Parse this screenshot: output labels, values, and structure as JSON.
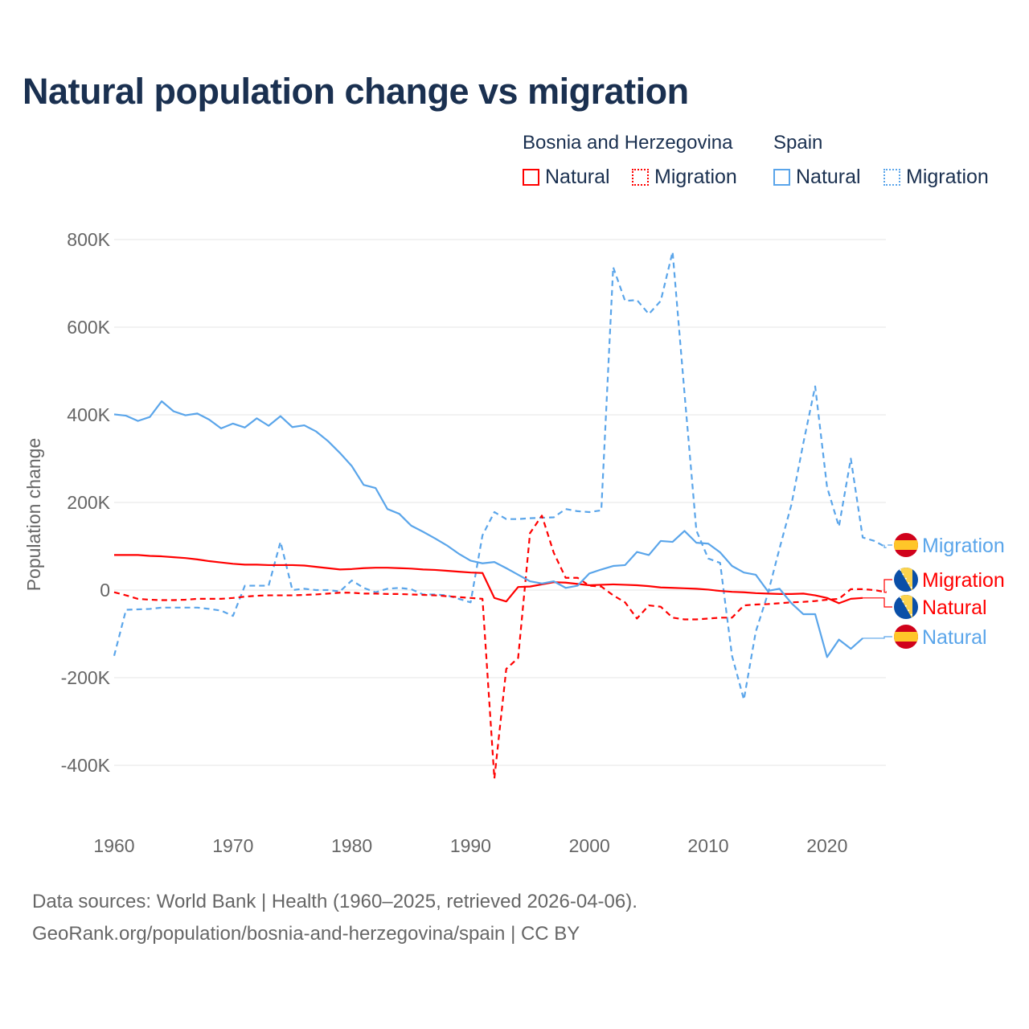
{
  "title": "Natural population change vs migration",
  "legend": {
    "groups": [
      {
        "name": "Bosnia and Herzegovina",
        "items": [
          "Natural",
          "Migration"
        ]
      },
      {
        "name": "Spain",
        "items": [
          "Natural",
          "Migration"
        ]
      }
    ]
  },
  "footer": {
    "line1": "Data sources: World Bank | Health (1960–2025, retrieved 2026-04-06).",
    "line2": "GeoRank.org/population/bosnia-and-herzegovina/spain | CC BY"
  },
  "colors": {
    "bosnia": "#ff0000",
    "spain": "#5aa5ea"
  },
  "chart_data": {
    "type": "line",
    "title": "Natural population change vs migration",
    "xlabel": "",
    "ylabel": "Population change",
    "xlim": [
      1960,
      2025
    ],
    "ylim": [
      -500000,
      850000
    ],
    "x_ticks": [
      1960,
      1970,
      1980,
      1990,
      2000,
      2010,
      2020
    ],
    "x_tick_labels": [
      "1960",
      "1970",
      "1980",
      "1990",
      "2000",
      "2010",
      "2020"
    ],
    "y_ticks": [
      -400000,
      -200000,
      0,
      200000,
      400000,
      600000,
      800000
    ],
    "y_tick_labels": [
      "-400K",
      "-200K",
      "0",
      "200K",
      "400K",
      "600K",
      "800K"
    ],
    "grid": true,
    "legend_position": "top-right",
    "series": [
      {
        "name": "Spain Migration",
        "country": "Spain",
        "kind": "Migration",
        "label": "Migration",
        "color": "#5aa5ea",
        "dashed": true,
        "start_year": 1960,
        "values": [
          -150,
          -45,
          -44,
          -43,
          -40,
          -40,
          -40,
          -40,
          -43,
          -47,
          -59,
          10,
          10,
          10,
          110,
          0,
          3,
          0,
          0,
          -3,
          22,
          5,
          -5,
          3,
          5,
          2,
          -10,
          -10,
          -12,
          -20,
          -28,
          125,
          178,
          162,
          162,
          164,
          165,
          166,
          185,
          180,
          178,
          182,
          737,
          660,
          662,
          630,
          660,
          772,
          450,
          136,
          72,
          62,
          -150,
          -250,
          -95,
          -10,
          95,
          195,
          335,
          465,
          235,
          145,
          300,
          120,
          112,
          97
        ]
      },
      {
        "name": "Bosnia and Herzegovina Migration",
        "country": "Bosnia and Herzegovina",
        "kind": "Migration",
        "label": "Migration",
        "color": "#ff0000",
        "dashed": true,
        "start_year": 1960,
        "values": [
          -5,
          -12,
          -20,
          -22,
          -23,
          -23,
          -22,
          -20,
          -20,
          -20,
          -18,
          -15,
          -13,
          -12,
          -12,
          -12,
          -11,
          -10,
          -8,
          -6,
          -6,
          -8,
          -8,
          -9,
          -9,
          -10,
          -11,
          -12,
          -14,
          -16,
          -18,
          -20,
          -430,
          -180,
          -155,
          130,
          170,
          85,
          28,
          28,
          10,
          8,
          -12,
          -28,
          -65,
          -35,
          -38,
          -63,
          -67,
          -67,
          -65,
          -63,
          -63,
          -35,
          -33,
          -32,
          -30,
          -28,
          -27,
          -25,
          -22,
          -20,
          2,
          2,
          0,
          -5
        ]
      },
      {
        "name": "Bosnia and Herzegovina Natural",
        "country": "Bosnia and Herzegovina",
        "kind": "Natural",
        "label": "Natural",
        "color": "#ff0000",
        "dashed": false,
        "start_year": 1960,
        "values": [
          80,
          80,
          80,
          78,
          77,
          75,
          73,
          70,
          66,
          63,
          60,
          58,
          58,
          57,
          57,
          57,
          56,
          53,
          50,
          47,
          48,
          50,
          51,
          51,
          50,
          49,
          47,
          46,
          44,
          42,
          40,
          39,
          -18,
          -26,
          7,
          8,
          13,
          18,
          17,
          14,
          11,
          12,
          13,
          12,
          11,
          9,
          6,
          5,
          4,
          3,
          1,
          -2,
          -4,
          -5,
          -7,
          -8,
          -9,
          -9,
          -8,
          -12,
          -18,
          -30,
          -20,
          -18
        ]
      },
      {
        "name": "Spain Natural",
        "country": "Spain",
        "kind": "Natural",
        "label": "Natural",
        "color": "#5aa5ea",
        "dashed": false,
        "start_year": 1960,
        "values": [
          401,
          398,
          386,
          395,
          431,
          408,
          399,
          403,
          389,
          369,
          380,
          371,
          392,
          375,
          397,
          372,
          376,
          362,
          340,
          313,
          283,
          240,
          233,
          185,
          174,
          147,
          133,
          118,
          102,
          83,
          67,
          61,
          64,
          50,
          35,
          20,
          15,
          20,
          5,
          10,
          38,
          47,
          55,
          57,
          87,
          80,
          112,
          110,
          135,
          108,
          106,
          86,
          55,
          40,
          35,
          -2,
          3,
          -30,
          -55,
          -55,
          -153,
          -113,
          -134,
          -110
        ]
      }
    ],
    "value_unit": "thousands"
  }
}
